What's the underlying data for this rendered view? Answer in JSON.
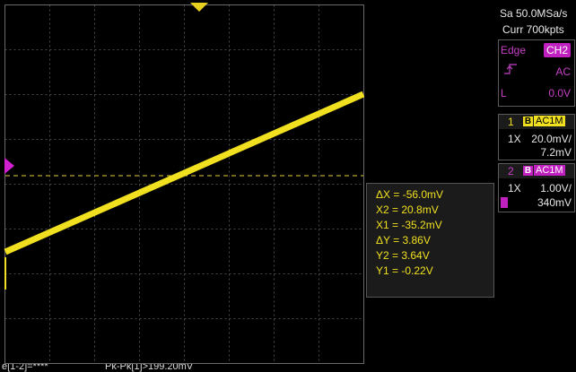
{
  "acquisition": {
    "sample_rate": "Sa 50.0MSa/s",
    "memory_depth": "Curr 700kpts"
  },
  "trigger": {
    "type": "Edge",
    "source": "CH2",
    "slope_icon": "rising-edge-icon",
    "coupling": "AC",
    "level_prefix": "L",
    "level": "0.0V"
  },
  "channels": [
    {
      "number": "1",
      "bw_limit": "B",
      "coupling": "AC1M",
      "probe": "1X",
      "scale": "20.0mV/",
      "offset": "7.2mV",
      "color": "#f0e020"
    },
    {
      "number": "2",
      "bw_limit": "B",
      "coupling": "AC1M",
      "probe": "1X",
      "scale": "1.00V/",
      "offset": "340mV",
      "color": "#c020c0"
    }
  ],
  "cursors": {
    "delta_x": "ΔX = -56.0mV",
    "x2": "X2 = 20.8mV",
    "x1": "X1 = -35.2mV",
    "delta_y": "ΔY = 3.86V",
    "y2": "Y2 = 3.64V",
    "y1": "Y1 = -0.22V"
  },
  "measurements": {
    "left": "e[1-2]=****",
    "right": "Pk-Pk[1]>199.20mV"
  },
  "waveform": {
    "trace_color": "#f0e020",
    "x_start_mV": -35.2,
    "x_end_mV": 20.8,
    "y_start_V": -0.22,
    "y_end_V": 3.64
  },
  "colors": {
    "grid": "#5a5a5a",
    "ch1": "#f0e020",
    "ch2": "#c020c0",
    "trigger_marker": "#e0c000"
  }
}
